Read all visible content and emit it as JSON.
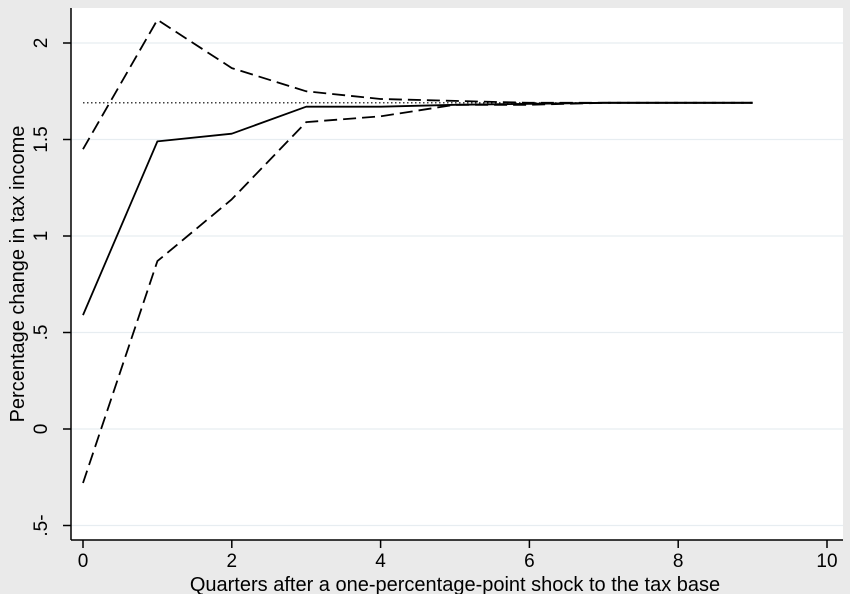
{
  "chart_data": {
    "type": "line",
    "title": "",
    "xlabel": "Quarters after a one-percentage-point shock to the tax base",
    "ylabel": "Percentage change in tax income",
    "xlim": [
      -0.2,
      10.2
    ],
    "ylim": [
      -0.55,
      2.2
    ],
    "x_ticks": [
      0,
      2,
      4,
      6,
      8,
      10
    ],
    "y_ticks": [
      -0.5,
      0,
      0.5,
      1,
      1.5,
      2
    ],
    "x_tick_labels": [
      "0",
      "2",
      "4",
      "6",
      "8",
      "10"
    ],
    "y_tick_labels": [
      ".5-",
      "0",
      ".5",
      "1",
      "1.5",
      "2"
    ],
    "grid": "horizontal",
    "legend": "none",
    "series": [
      {
        "style": "solid",
        "x": [
          0,
          1,
          2,
          3,
          4,
          5,
          6,
          7,
          8,
          9
        ],
        "values": [
          0.59,
          1.49,
          1.53,
          1.67,
          1.67,
          1.68,
          1.685,
          1.69,
          1.69,
          1.69
        ]
      },
      {
        "style": "dashed",
        "x": [
          0,
          1,
          2,
          3,
          4,
          5,
          6,
          7,
          8,
          9
        ],
        "values": [
          1.45,
          2.12,
          1.87,
          1.75,
          1.71,
          1.7,
          1.69,
          1.69,
          1.69,
          1.69
        ]
      },
      {
        "style": "dashed",
        "x": [
          0,
          1,
          2,
          3,
          4,
          5,
          6,
          7,
          8,
          9
        ],
        "values": [
          -0.28,
          0.87,
          1.19,
          1.59,
          1.62,
          1.68,
          1.68,
          1.69,
          1.69,
          1.69
        ]
      },
      {
        "style": "dotted",
        "x": [
          0,
          9
        ],
        "values": [
          1.69,
          1.69
        ]
      }
    ]
  }
}
